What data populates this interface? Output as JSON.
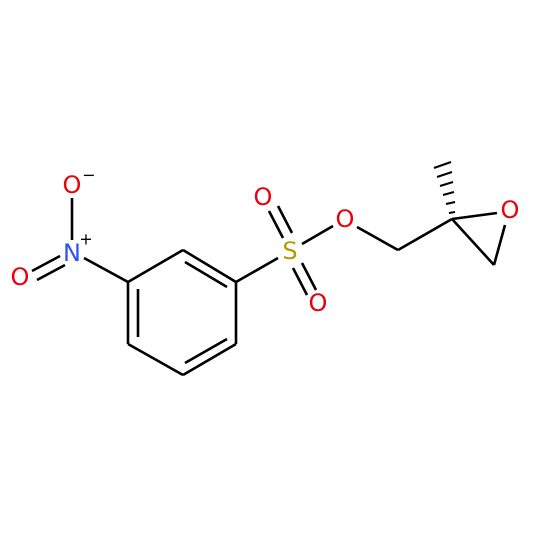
{
  "atoms": [
    {
      "label": "O"
    },
    {
      "label": "N"
    },
    {
      "label": "O"
    },
    {
      "label": "S"
    },
    {
      "label": "O"
    },
    {
      "label": "O"
    },
    {
      "label": "O"
    },
    {
      "label": "O"
    }
  ],
  "charges": [
    "−",
    "+"
  ]
}
